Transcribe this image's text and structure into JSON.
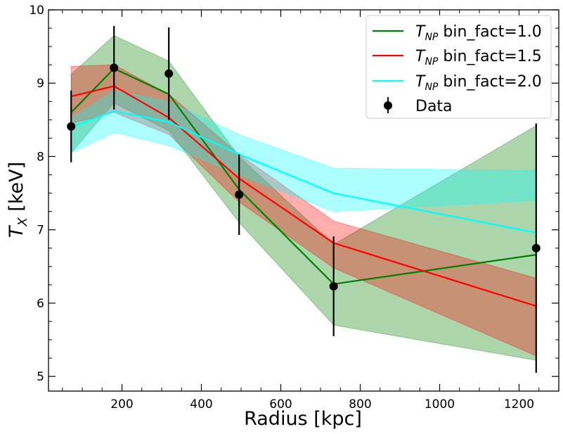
{
  "chart_data": {
    "type": "line",
    "title": "",
    "xlabel": "Radius [kpc]",
    "ylabel_main": "T",
    "ylabel_sub": "X",
    "ylabel_unit": " [keV]",
    "xlim": [
      15,
      1300
    ],
    "ylim": [
      4.8,
      10.0
    ],
    "x_ticks": [
      200,
      400,
      600,
      800,
      1000,
      1200
    ],
    "y_ticks": [
      5,
      6,
      7,
      8,
      9,
      10
    ],
    "grid": false,
    "legend_position": "top-right",
    "series": [
      {
        "name_main": "T",
        "name_sub": "NP",
        "name_rest": " bin_fact=1.0",
        "color": "#008000",
        "x": [
          72,
          180,
          318,
          495,
          733,
          1243
        ],
        "y": [
          8.6,
          9.2,
          8.85,
          7.55,
          6.26,
          6.66
        ],
        "y_upper": [
          9.12,
          9.65,
          9.3,
          8.0,
          6.8,
          8.42
        ],
        "y_lower": [
          8.05,
          8.73,
          8.35,
          7.1,
          5.7,
          5.22
        ]
      },
      {
        "name_main": "T",
        "name_sub": "NP",
        "name_rest": " bin_fact=1.5",
        "color": "#ff0000",
        "x": [
          72,
          180,
          318,
          495,
          733,
          1243
        ],
        "y": [
          8.82,
          8.96,
          8.53,
          7.7,
          6.82,
          5.96
        ],
        "y_upper": [
          9.23,
          9.25,
          8.85,
          8.03,
          7.12,
          6.34
        ],
        "y_lower": [
          8.45,
          8.6,
          8.3,
          7.38,
          6.48,
          5.28
        ]
      },
      {
        "name_main": "T",
        "name_sub": "NP",
        "name_rest": " bin_fact=2.0",
        "color": "#00ffff",
        "x": [
          72,
          180,
          318,
          495,
          733,
          1243
        ],
        "y": [
          8.4,
          8.62,
          8.47,
          8.03,
          7.5,
          6.96
        ],
        "y_upper": [
          8.53,
          8.9,
          8.75,
          8.3,
          7.84,
          7.81
        ],
        "y_lower": [
          8.05,
          8.33,
          8.15,
          7.75,
          7.25,
          7.4
        ]
      }
    ],
    "data_points": {
      "name": "Data",
      "color": "#000000",
      "x": [
        72,
        180,
        318,
        495,
        733,
        1243
      ],
      "y": [
        8.41,
        9.21,
        9.13,
        7.48,
        6.23,
        6.75
      ],
      "y_err": [
        0.49,
        0.57,
        0.63,
        0.55,
        0.68,
        1.7
      ]
    }
  }
}
